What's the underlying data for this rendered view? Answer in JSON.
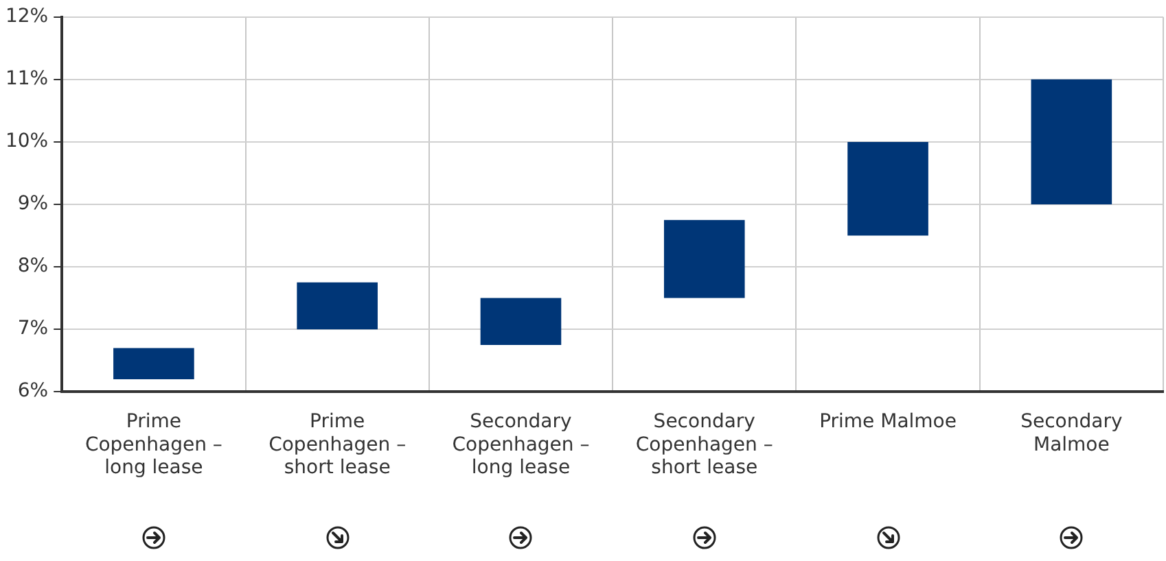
{
  "chart_data": {
    "type": "bar",
    "categories": [
      "Prime Copenhagen – long lease",
      "Prime Copenhagen – short lease",
      "Secondary Copenhagen – long lease",
      "Secondary Copenhagen – short lease",
      "Prime Malmoe",
      "Secondary Malmoe"
    ],
    "base": [
      6.2,
      7,
      6.75,
      7.5,
      8.5,
      9
    ],
    "values": [
      0.5,
      0.75,
      0.75,
      1.25,
      1.5,
      2
    ],
    "color": "#003677",
    "ylim": [
      6,
      12
    ],
    "yticks": [
      {
        "value": 6,
        "label": "6%"
      },
      {
        "value": 7,
        "label": "7%"
      },
      {
        "value": 8,
        "label": "8%"
      },
      {
        "value": 9,
        "label": "9%"
      },
      {
        "value": 10,
        "label": "10%"
      },
      {
        "value": 11,
        "label": "11%"
      },
      {
        "value": 12,
        "label": "12%"
      }
    ],
    "grid": true
  }
}
